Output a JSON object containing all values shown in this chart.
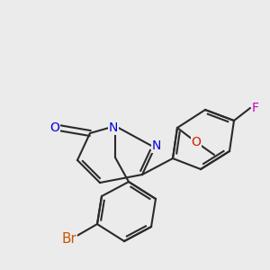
{
  "background_color": "#ebebeb",
  "bond_color": "#2a2a2a",
  "figsize": [
    3.0,
    3.0
  ],
  "dpi": 100,
  "atom_colors": {
    "O_carbonyl": "#0000dd",
    "N": "#0000dd",
    "O_methoxy": "#cc2200",
    "F": "#cc00bb",
    "Br": "#cc5500"
  },
  "fontsize": 10
}
